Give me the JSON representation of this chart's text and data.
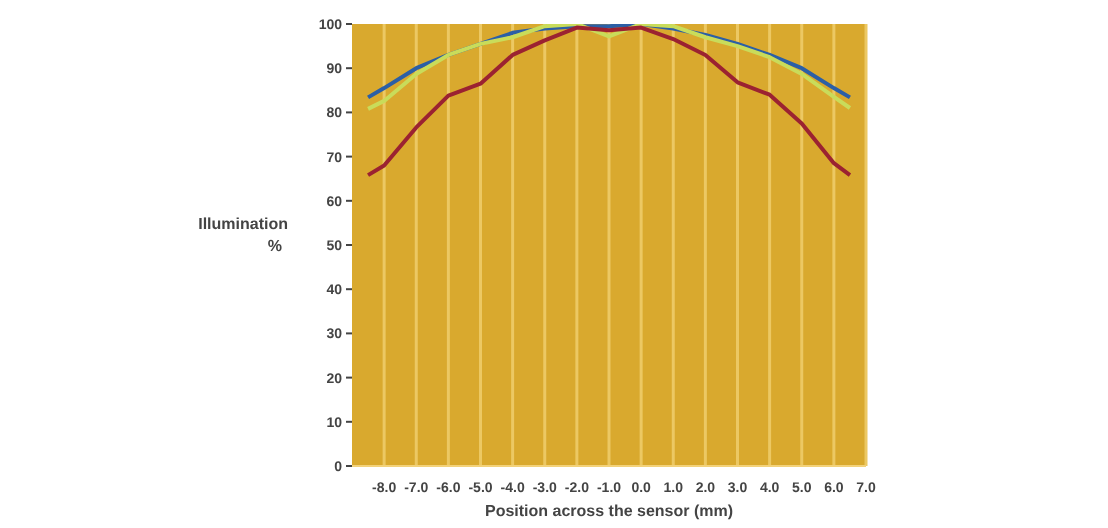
{
  "chart_data": {
    "type": "line",
    "xlabel": "Position across the sensor (mm)",
    "ylabel": "Illumination\n%",
    "x": [
      -8.5,
      -8,
      -7,
      -6,
      -5,
      -4,
      -3,
      -2,
      -1,
      0,
      1,
      2,
      3,
      4,
      5,
      6,
      6.5
    ],
    "series": [
      {
        "color": "#2b5fa6",
        "values": [
          83.4,
          85.5,
          90,
          93,
          95.5,
          98,
          99,
          99.5,
          99.5,
          100,
          99,
          97.5,
          95.5,
          93,
          90,
          85.5,
          83.4
        ]
      },
      {
        "color": "#c9dc5a",
        "values": [
          80.8,
          82.6,
          88.7,
          93,
          95.5,
          97,
          99.5,
          100,
          97.2,
          100,
          99.5,
          97,
          95,
          92.5,
          88.7,
          83.5,
          81
        ]
      },
      {
        "color": "#9b2231",
        "values": [
          65.8,
          68,
          76.6,
          83.8,
          86.5,
          93,
          96.3,
          99.2,
          98.6,
          99.2,
          96.6,
          93,
          86.8,
          84,
          77.5,
          68.5,
          65.8
        ]
      }
    ],
    "xlim": [
      -9,
      7
    ],
    "xticks": [
      {
        "value": -8,
        "label": "-8.0"
      },
      {
        "value": -7,
        "label": "-7.0"
      },
      {
        "value": -6,
        "label": "-6.0"
      },
      {
        "value": -5,
        "label": "-5.0"
      },
      {
        "value": -4,
        "label": "-4.0"
      },
      {
        "value": -3,
        "label": "-3.0"
      },
      {
        "value": -2,
        "label": "-2.0"
      },
      {
        "value": -1,
        "label": "-1.0"
      },
      {
        "value": 0,
        "label": "0.0"
      },
      {
        "value": 1,
        "label": "1.0"
      },
      {
        "value": 2,
        "label": "2.0"
      },
      {
        "value": 3,
        "label": "3.0"
      },
      {
        "value": 4,
        "label": "4.0"
      },
      {
        "value": 5,
        "label": "5.0"
      },
      {
        "value": 6,
        "label": "6.0"
      },
      {
        "value": 7,
        "label": "7.0"
      }
    ],
    "ylim": [
      0,
      100
    ],
    "yticks": [
      0,
      10,
      20,
      30,
      40,
      50,
      60,
      70,
      80,
      90,
      100
    ],
    "grid": "x",
    "marker": "none",
    "line_style": "solid"
  }
}
